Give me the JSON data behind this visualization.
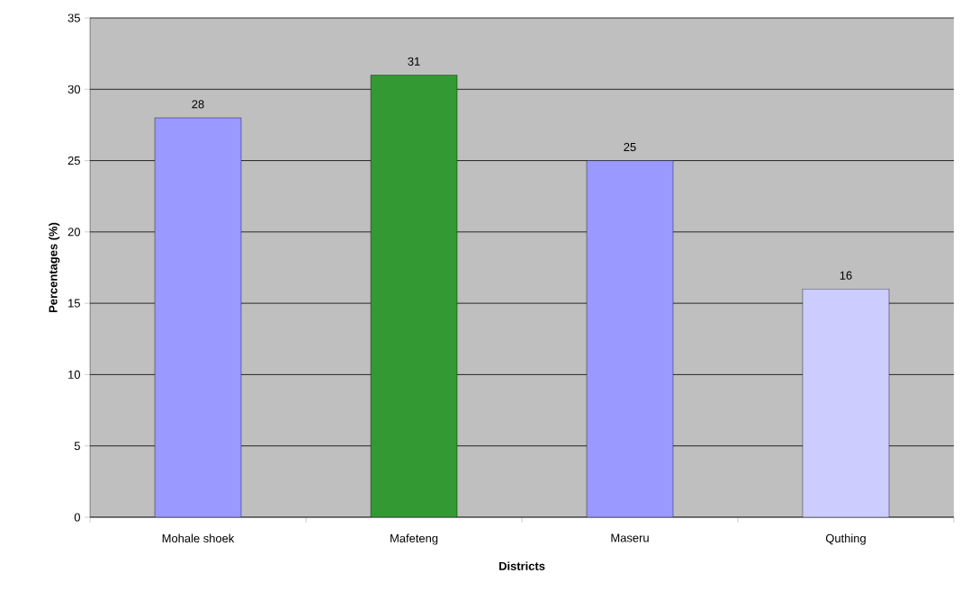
{
  "chart_data": {
    "type": "bar",
    "xlabel": "Districts",
    "ylabel": "Percentages (%)",
    "categories": [
      "Mohale shoek",
      "Mafeteng",
      "Maseru",
      "Quthing"
    ],
    "values": [
      28,
      31,
      25,
      16
    ],
    "colors": [
      "#9999ff",
      "#339933",
      "#9999ff",
      "#ccccff"
    ],
    "ylim": [
      0,
      35
    ],
    "yticks": [
      0,
      5,
      10,
      15,
      20,
      25,
      30,
      35
    ],
    "grid": "y",
    "data_labels": true
  }
}
